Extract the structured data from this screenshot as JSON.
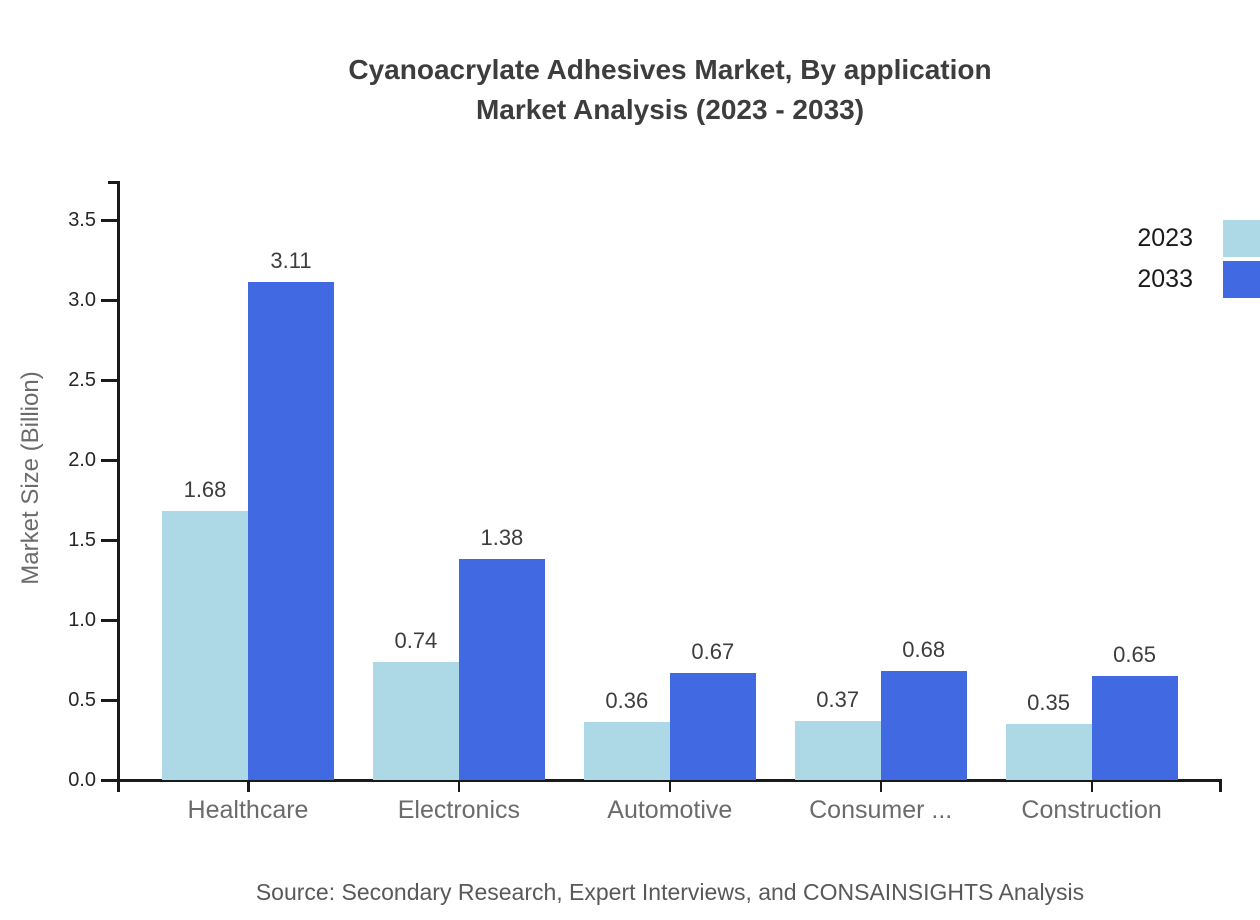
{
  "chart": {
    "title_line1": "Cyanoacrylate Adhesives Market, By application",
    "title_line2": "Market Analysis (2023 - 2033)",
    "source": "Source: Secondary Research, Expert Interviews, and CONSAINSIGHTS Analysis"
  },
  "chart_data": {
    "type": "bar",
    "title": "Cyanoacrylate Adhesives Market, By application Market Analysis (2023 - 2033)",
    "categories": [
      "Healthcare",
      "Electronics",
      "Automotive",
      "Consumer ...",
      "Construction"
    ],
    "series": [
      {
        "name": "2023",
        "color": "#ADD8E6",
        "values": [
          1.68,
          0.74,
          0.36,
          0.37,
          0.35
        ]
      },
      {
        "name": "2033",
        "color": "#4169E1",
        "values": [
          3.11,
          1.38,
          0.67,
          0.68,
          0.65
        ]
      }
    ],
    "xlabel": "",
    "ylabel": "Market Size (Billion)",
    "ylim": [
      0,
      3.5
    ],
    "ytick_step": 0.5,
    "ytick_labels": [
      "0.0",
      "0.5",
      "1.0",
      "1.5",
      "2.0",
      "2.5",
      "3.0",
      "3.5"
    ],
    "grid": false,
    "legend_position": "top-right",
    "value_labels": true
  }
}
